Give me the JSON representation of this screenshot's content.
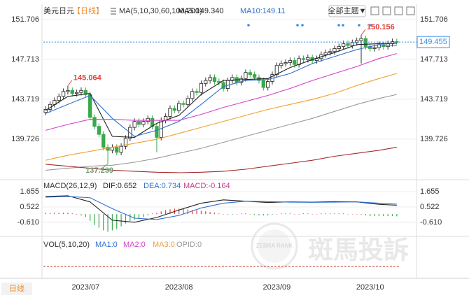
{
  "toolbar": {
    "instrument": "美元日元",
    "period": "【日线】",
    "theme_button": "全部主题▼"
  },
  "footer_tab": "日线",
  "watermark": {
    "brand": "ZEBRA RANK",
    "name": "斑馬投訴"
  },
  "chart_data": [
    {
      "type": "candlestick",
      "indicator": "MA(5,10,30,60,100,200)",
      "categories": [
        null,
        null,
        null,
        null,
        null,
        null,
        null,
        null,
        null,
        "2023/07",
        null,
        null,
        null,
        null,
        null,
        null,
        null,
        null,
        null,
        null,
        null,
        null,
        null,
        null,
        null,
        null,
        null,
        null,
        null,
        null,
        "2023/08",
        null,
        null,
        null,
        null,
        null,
        null,
        null,
        null,
        null,
        null,
        null,
        null,
        null,
        null,
        null,
        null,
        null,
        null,
        null,
        null,
        null,
        "2023/09",
        null,
        null,
        null,
        null,
        null,
        null,
        null,
        null,
        null,
        null,
        null,
        null,
        null,
        null,
        null,
        null,
        null,
        null,
        null,
        null,
        "2023/10",
        null,
        null,
        null,
        null,
        null,
        null
      ],
      "open": [
        142.4,
        142.7,
        143.2,
        143.6,
        144.0,
        144.5,
        144.6,
        144.3,
        144.4,
        144.6,
        144.2,
        141.9,
        141.0,
        140.2,
        138.9,
        138.6,
        138.9,
        138.4,
        139.0,
        139.8,
        140.9,
        141.5,
        141.2,
        141.5,
        141.8,
        141.0,
        139.9,
        141.6,
        142.0,
        142.8,
        142.6,
        143.3,
        143.2,
        143.8,
        144.5,
        144.4,
        145.3,
        145.6,
        145.9,
        145.5,
        145.4,
        144.8,
        145.6,
        145.9,
        145.4,
        145.8,
        146.4,
        146.2,
        145.9,
        145.6,
        144.9,
        145.5,
        146.2,
        147.1,
        147.3,
        147.4,
        147.6,
        147.2,
        147.8,
        147.7,
        147.9,
        147.6,
        147.8,
        148.2,
        148.4,
        148.5,
        148.8,
        149.0,
        149.3,
        149.1,
        149.4,
        149.6,
        149.8,
        149.0,
        148.8,
        148.9,
        149.2,
        149.0,
        149.3,
        149.5
      ],
      "high": [
        143.0,
        143.5,
        143.9,
        144.3,
        144.8,
        145.064,
        144.9,
        144.7,
        144.9,
        144.9,
        144.5,
        142.2,
        141.3,
        140.5,
        139.2,
        139.2,
        139.2,
        139.3,
        140.1,
        141.2,
        141.8,
        141.8,
        141.8,
        142.1,
        142.1,
        141.3,
        141.9,
        142.3,
        143.1,
        143.1,
        143.6,
        143.6,
        144.1,
        144.8,
        144.8,
        145.6,
        145.9,
        146.2,
        146.2,
        145.8,
        145.7,
        145.9,
        146.2,
        146.2,
        146.1,
        146.7,
        146.7,
        146.5,
        146.2,
        145.9,
        145.8,
        146.5,
        147.4,
        147.6,
        147.7,
        147.9,
        147.9,
        148.1,
        148.1,
        148.2,
        148.2,
        148.1,
        148.5,
        148.7,
        148.8,
        149.1,
        149.3,
        149.6,
        149.6,
        149.7,
        149.9,
        150.156,
        150.1,
        149.3,
        149.2,
        149.5,
        149.5,
        149.6,
        149.8,
        149.8
      ],
      "low": [
        142.1,
        142.4,
        142.9,
        143.3,
        143.7,
        144.2,
        144.0,
        144.0,
        144.1,
        143.9,
        141.6,
        140.7,
        139.9,
        138.6,
        137.239,
        138.3,
        138.1,
        138.1,
        138.7,
        139.5,
        140.6,
        140.9,
        140.9,
        141.2,
        140.7,
        138.4,
        139.6,
        141.3,
        141.7,
        142.3,
        142.3,
        142.9,
        142.9,
        143.5,
        144.1,
        144.1,
        145.0,
        145.3,
        145.2,
        145.1,
        144.5,
        144.5,
        145.3,
        145.1,
        145.1,
        145.5,
        145.9,
        145.6,
        145.3,
        144.6,
        144.6,
        145.2,
        145.9,
        146.8,
        147.0,
        147.1,
        146.9,
        146.9,
        147.4,
        147.4,
        147.3,
        147.3,
        147.5,
        147.9,
        148.1,
        148.2,
        148.5,
        148.7,
        148.8,
        148.8,
        149.1,
        147.3,
        148.7,
        148.5,
        148.5,
        148.6,
        148.7,
        148.7,
        149.0,
        149.2
      ],
      "close": [
        142.7,
        143.2,
        143.6,
        144.0,
        144.5,
        144.6,
        144.3,
        144.4,
        144.6,
        144.2,
        141.9,
        141.0,
        140.2,
        138.9,
        138.6,
        138.9,
        138.4,
        139.0,
        139.8,
        140.9,
        141.5,
        141.2,
        141.5,
        141.8,
        141.0,
        139.9,
        141.6,
        142.0,
        142.8,
        142.6,
        143.3,
        143.2,
        143.8,
        144.5,
        144.4,
        145.3,
        145.6,
        145.9,
        145.5,
        145.4,
        144.8,
        145.6,
        145.9,
        145.4,
        145.8,
        146.4,
        146.2,
        145.9,
        145.6,
        144.9,
        145.5,
        146.2,
        147.1,
        147.3,
        147.4,
        147.6,
        147.2,
        147.8,
        147.7,
        147.9,
        147.6,
        147.8,
        148.2,
        148.4,
        148.5,
        148.8,
        149.0,
        149.3,
        149.1,
        149.4,
        149.6,
        149.8,
        149.0,
        148.8,
        148.9,
        149.2,
        149.0,
        149.3,
        149.5,
        149.455
      ],
      "up_color": "#333333",
      "down_color": "#3aa94b",
      "ylim": [
        136.0,
        152.27
      ],
      "yticks": [
        151.706,
        147.713,
        143.719,
        139.726
      ],
      "grid": true,
      "series": [
        {
          "name": "MA5:149.340",
          "color": "#222222",
          "x": [
            0,
            5,
            10,
            15,
            20,
            25,
            30,
            35,
            40,
            45,
            50,
            55,
            60,
            65,
            70,
            75,
            79
          ],
          "values": [
            142.6,
            144.0,
            144.3,
            140.0,
            139.9,
            141.3,
            142.1,
            144.2,
            145.6,
            145.7,
            145.8,
            146.9,
            147.7,
            148.4,
            149.2,
            149.3,
            149.34
          ]
        },
        {
          "name": "MA10:149.11",
          "color": "#2f6fd0",
          "x": [
            0,
            5,
            10,
            15,
            20,
            25,
            30,
            35,
            40,
            45,
            50,
            55,
            60,
            65,
            70,
            75,
            79
          ],
          "values": [
            142.3,
            143.2,
            144.1,
            141.8,
            140.0,
            140.6,
            141.5,
            143.2,
            145.0,
            145.6,
            145.7,
            146.3,
            147.3,
            148.0,
            148.7,
            149.2,
            149.11
          ]
        },
        {
          "color": "#d63fc9",
          "x": [
            0,
            5,
            10,
            15,
            20,
            25,
            30,
            35,
            40,
            45,
            50,
            55,
            60,
            65,
            70,
            75,
            79
          ],
          "values": [
            140.6,
            141.2,
            141.7,
            141.7,
            141.6,
            141.6,
            141.6,
            142.2,
            142.9,
            143.5,
            144.1,
            144.8,
            145.6,
            146.3,
            147.0,
            147.8,
            148.3
          ]
        },
        {
          "color": "#f0a030",
          "x": [
            0,
            5,
            10,
            15,
            20,
            25,
            30,
            35,
            40,
            45,
            50,
            55,
            60,
            65,
            70,
            75,
            79
          ],
          "values": [
            137.6,
            138.1,
            138.5,
            138.9,
            139.3,
            139.7,
            140.3,
            140.9,
            141.5,
            142.1,
            142.7,
            143.2,
            143.7,
            144.3,
            145.1,
            145.8,
            146.3
          ]
        },
        {
          "color": "#9a9a9a",
          "x": [
            0,
            5,
            10,
            15,
            20,
            25,
            30,
            35,
            40,
            45,
            50,
            55,
            60,
            65,
            70,
            75,
            79
          ],
          "values": [
            136.6,
            136.8,
            137.0,
            137.1,
            137.4,
            137.8,
            138.3,
            138.8,
            139.4,
            140.0,
            140.6,
            141.2,
            141.8,
            142.5,
            143.2,
            143.8,
            144.2
          ]
        },
        {
          "color": "#a52a2a",
          "x": [
            0,
            5,
            10,
            15,
            20,
            25,
            30,
            35,
            40,
            45,
            50,
            55,
            60,
            65,
            70,
            75,
            79
          ],
          "values": [
            137.2,
            137.0,
            136.8,
            136.6,
            136.5,
            136.4,
            136.35,
            136.4,
            136.5,
            136.7,
            137.0,
            137.3,
            137.6,
            138.0,
            138.3,
            138.6,
            138.9
          ]
        }
      ]
    },
    {
      "type": "macd",
      "title": "MACD(26,12,9)",
      "ylim": [
        -1.485,
        2.376
      ],
      "yticks": [
        1.655,
        0.522,
        {
          "value": -0.61,
          "label": "-0.610"
        }
      ],
      "series": [
        {
          "name": "DIF:0.652",
          "color": "#222222",
          "x": [
            0,
            5,
            10,
            15,
            20,
            25,
            30,
            35,
            40,
            45,
            50,
            55,
            60,
            65,
            70,
            75,
            79
          ],
          "values": [
            1.3,
            1.35,
            0.9,
            -0.45,
            -0.6,
            -0.25,
            0.3,
            0.8,
            1.05,
            0.95,
            0.85,
            0.9,
            0.88,
            0.92,
            0.9,
            0.72,
            0.652
          ]
        },
        {
          "name": "DEA:0.734",
          "color": "#2f6fd0",
          "x": [
            0,
            5,
            10,
            15,
            20,
            25,
            30,
            35,
            40,
            45,
            50,
            55,
            60,
            65,
            70,
            75,
            79
          ],
          "values": [
            1.25,
            1.3,
            1.2,
            0.4,
            -0.3,
            -0.4,
            -0.1,
            0.45,
            0.8,
            0.95,
            0.92,
            0.88,
            0.87,
            0.88,
            0.9,
            0.8,
            0.734
          ]
        }
      ],
      "histogram": {
        "name": "MACD:-0.164",
        "color": "#c8388f",
        "up_color": "#e0413a",
        "down_color": "#3aa94b",
        "values": [
          0.1,
          0.1,
          0.1,
          0.1,
          0.1,
          0.1,
          0.05,
          0,
          -0.1,
          -0.2,
          -0.5,
          -0.8,
          -1.0,
          -1.2,
          -1.3,
          -1.2,
          -1.1,
          -0.9,
          -0.7,
          -0.5,
          -0.4,
          -0.3,
          -0.2,
          -0.1,
          0.05,
          0.1,
          0.2,
          0.3,
          0.35,
          0.4,
          0.4,
          0.4,
          0.35,
          0.3,
          0.3,
          0.25,
          0.2,
          0.15,
          0.1,
          0.05,
          0,
          -0.05,
          -0.05,
          0,
          0.05,
          0.05,
          0,
          -0.05,
          -0.1,
          -0.1,
          -0.1,
          -0.05,
          0,
          0.05,
          0.05,
          0.05,
          0,
          0,
          0.05,
          0.05,
          0,
          0,
          0.05,
          0.05,
          0.05,
          0.05,
          0.05,
          0.05,
          0,
          0,
          0,
          -0.05,
          -0.1,
          -0.15,
          -0.15,
          -0.15,
          -0.15,
          -0.15,
          -0.15,
          -0.164
        ]
      }
    },
    {
      "type": "volume",
      "title": "VOL(5,10,20)",
      "series": [
        {
          "name": "MA1:0",
          "color": "#2f6fd0"
        },
        {
          "name": "MA2:0",
          "color": "#d63fc9"
        },
        {
          "name": "MA3:0",
          "color": "#f0a030"
        },
        {
          "name": "OPID:0",
          "color": "#999999"
        }
      ]
    }
  ]
}
